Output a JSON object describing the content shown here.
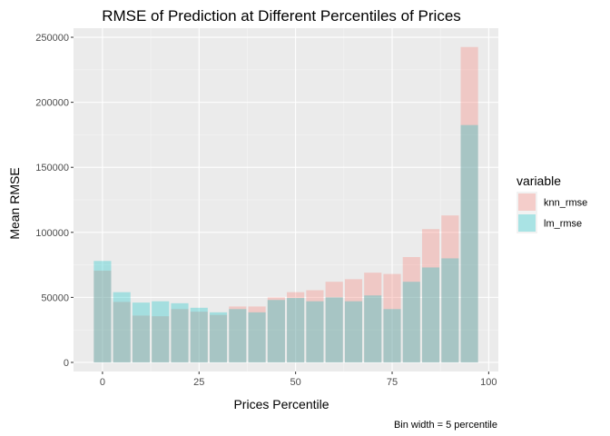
{
  "chart_data": {
    "type": "bar",
    "title": "RMSE of Prediction at Different Percentiles of Prices",
    "xlabel": "Prices Percentile",
    "ylabel": "Mean RMSE",
    "caption": "Bin width = 5 percentile",
    "x": [
      0,
      5,
      10,
      15,
      20,
      25,
      30,
      35,
      40,
      45,
      50,
      55,
      60,
      65,
      70,
      75,
      80,
      85,
      90,
      95
    ],
    "xlim": [
      -7.5,
      102.5
    ],
    "ylim": [
      -7000,
      257000
    ],
    "xticks": [
      0,
      25,
      50,
      75,
      100
    ],
    "yticks": [
      0,
      50000,
      100000,
      150000,
      200000,
      250000
    ],
    "bar_width": 4.5,
    "grid": true,
    "legend": {
      "title": "variable",
      "position": "right"
    },
    "series": [
      {
        "name": "knn_rmse",
        "color": "#F8766D",
        "values": [
          70500,
          46500,
          36000,
          35500,
          41000,
          39000,
          36500,
          43000,
          43000,
          50000,
          54000,
          55500,
          62000,
          64000,
          69000,
          68000,
          81000,
          102500,
          113000,
          242500
        ]
      },
      {
        "name": "lm_rmse",
        "color": "#00BFC4",
        "values": [
          78000,
          54000,
          46000,
          47000,
          45500,
          42000,
          38500,
          41000,
          38500,
          48000,
          49500,
          47000,
          50000,
          47000,
          51500,
          41000,
          62000,
          73000,
          80000,
          182500
        ]
      }
    ]
  }
}
